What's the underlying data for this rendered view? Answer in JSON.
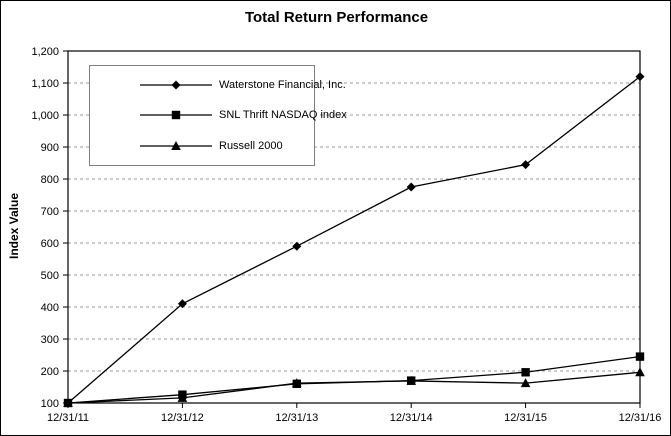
{
  "window": {
    "background": "#ffffff",
    "border_color": "#000000"
  },
  "chart_data": {
    "type": "line",
    "title": "Total Return Performance",
    "xlabel": "",
    "ylabel": "Index Value",
    "ylim": [
      100,
      1200
    ],
    "grid": "horizontal-dashed",
    "grid_color": "#999999",
    "axis_color": "#000000",
    "legend_position": "top-left-inside",
    "x_labels": [
      "12/31/11",
      "12/31/12",
      "12/31/13",
      "12/31/14",
      "12/31/15",
      "12/31/16"
    ],
    "y_ticks": [
      {
        "value": 100,
        "label": "100"
      },
      {
        "value": 200,
        "label": "200"
      },
      {
        "value": 300,
        "label": "300"
      },
      {
        "value": 400,
        "label": "400"
      },
      {
        "value": 500,
        "label": "500"
      },
      {
        "value": 600,
        "label": "600"
      },
      {
        "value": 700,
        "label": "700"
      },
      {
        "value": 800,
        "label": "800"
      },
      {
        "value": 900,
        "label": "900"
      },
      {
        "value": 1000,
        "label": "1,000"
      },
      {
        "value": 1100,
        "label": "1,100"
      },
      {
        "value": 1200,
        "label": "1,200"
      }
    ],
    "series": [
      {
        "name": "Waterstone Financial, Inc.",
        "marker": "diamond",
        "color": "#000000",
        "values": [
          100,
          410,
          590,
          775,
          845,
          1120
        ]
      },
      {
        "name": "SNL Thrift NASDAQ index",
        "marker": "square",
        "color": "#000000",
        "values": [
          100,
          126,
          160,
          170,
          196,
          245
        ]
      },
      {
        "name": "Russell 2000",
        "marker": "triangle",
        "color": "#000000",
        "values": [
          100,
          116,
          162,
          169,
          162,
          196
        ]
      }
    ]
  }
}
